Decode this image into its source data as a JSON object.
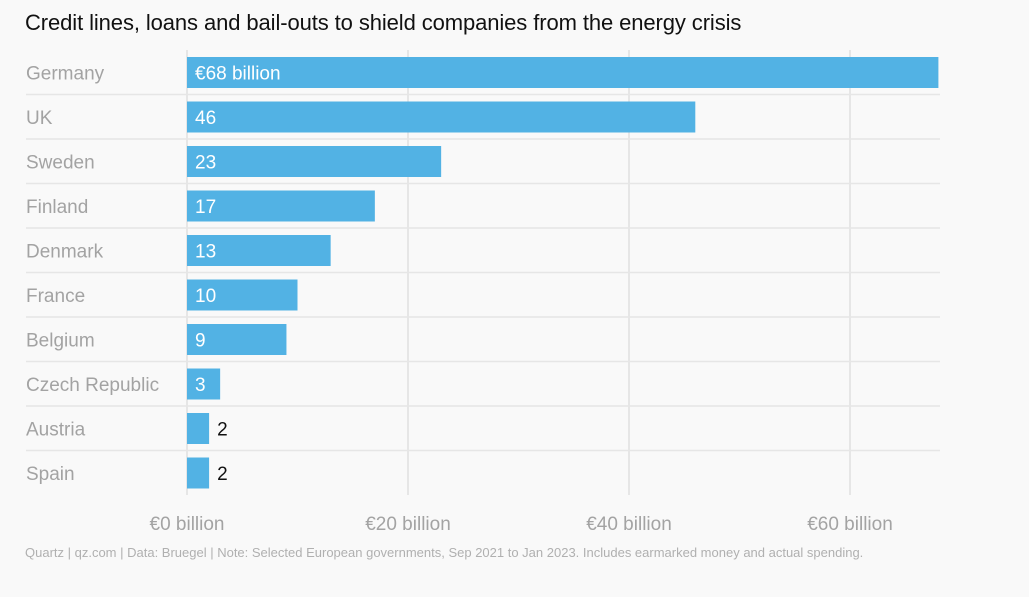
{
  "chart_data": {
    "type": "bar",
    "orientation": "horizontal",
    "title": "Credit lines, loans and bail-outs to shield companies from the energy crisis",
    "categories": [
      "Germany",
      "UK",
      "Sweden",
      "Finland",
      "Denmark",
      "France",
      "Belgium",
      "Czech Republic",
      "Austria",
      "Spain"
    ],
    "values": [
      68,
      46,
      23,
      17,
      13,
      10,
      9,
      3,
      2,
      2
    ],
    "value_labels": [
      "€68 billion",
      "46",
      "23",
      "17",
      "13",
      "10",
      "9",
      "3",
      "2",
      "2"
    ],
    "unit": "€ billion",
    "xlabel": "",
    "ylabel": "",
    "xlim": [
      0,
      68
    ],
    "xticks": [
      0,
      20,
      40,
      60
    ],
    "xtick_labels": [
      "€0 billion",
      "€20 billion",
      "€40 billion",
      "€60 billion"
    ],
    "grid": true,
    "legend": "none",
    "bar_color": "#52b2e4"
  },
  "footer": {
    "source": "Quartz | qz.com | Data: Bruegel | Note: Selected European governments, Sep 2021 to Jan 2023. Includes earmarked money and actual spending."
  },
  "colors": {
    "background": "#f9f9f9",
    "bar": "#52b2e4",
    "category_label": "#a3a3a3",
    "tick_label": "#a3a3a3",
    "grid": "#e6e6e6",
    "title": "#111111"
  }
}
